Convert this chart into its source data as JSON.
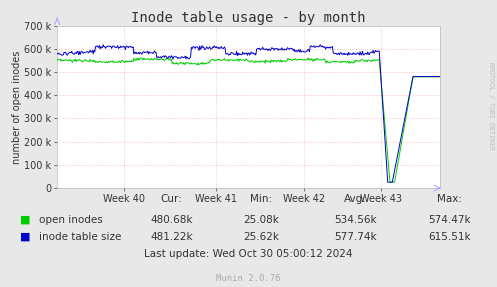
{
  "title": "Inode table usage - by month",
  "ylabel": "number of open inodes",
  "background_color": "#e8e8e8",
  "plot_bg_color": "#ffffff",
  "grid_color": "#ff9999",
  "ylim": [
    0,
    700000
  ],
  "yticks": [
    0,
    100000,
    200000,
    300000,
    400000,
    500000,
    600000,
    700000
  ],
  "ytick_labels": [
    "0",
    "100 k",
    "200 k",
    "300 k",
    "400 k",
    "500 k",
    "600 k",
    "700 k"
  ],
  "xtick_labels": [
    "Week 40",
    "Week 41",
    "Week 42",
    "Week 43"
  ],
  "xtick_positions": [
    0.175,
    0.415,
    0.645,
    0.845
  ],
  "open_inodes_color": "#00cc00",
  "inode_table_color": "#0000cc",
  "legend_items": [
    "open inodes",
    "inode table size"
  ],
  "cur_open": "480.68k",
  "cur_table": "481.22k",
  "min_open": "25.08k",
  "min_table": "25.62k",
  "avg_open": "534.56k",
  "avg_table": "577.74k",
  "max_open": "574.47k",
  "max_table": "615.51k",
  "last_update": "Last update: Wed Oct 30 05:00:12 2024",
  "munin_label": "Munin 2.0.76",
  "rrdtool_label": "RRDTOOL / TOBI OETIKER",
  "title_fontsize": 10,
  "axis_fontsize": 7,
  "small_fontsize": 6.5,
  "annotation_fontsize": 7.5
}
